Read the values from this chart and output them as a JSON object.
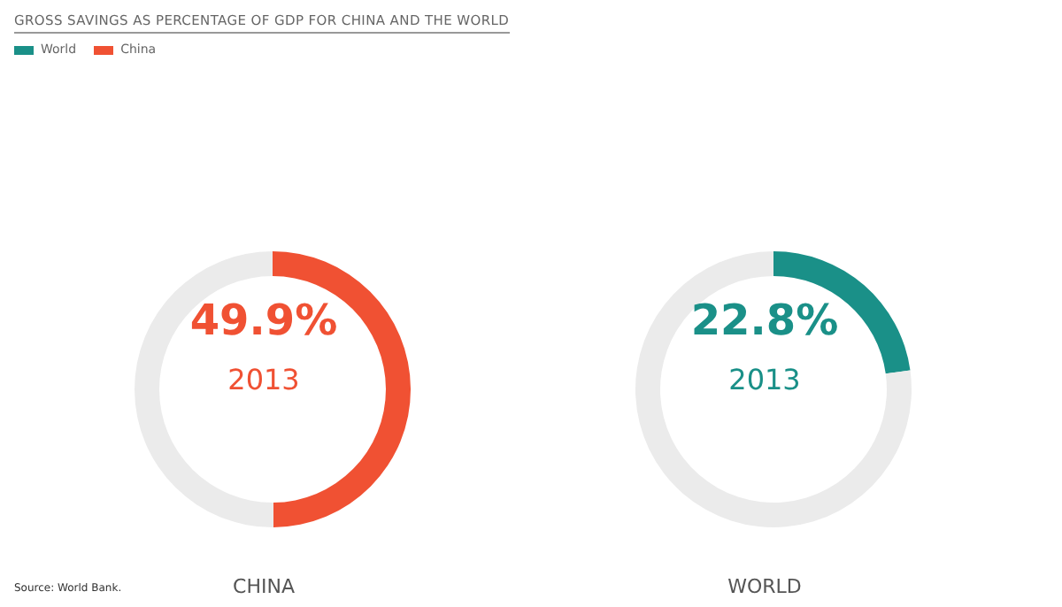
{
  "chart_data": [
    {
      "type": "donut",
      "title": "GROSS SAVINGS AS PERCENTAGE OF GDP FOR CHINA AND THE WORLD",
      "xlabel": "CHINA",
      "categories": [
        "China",
        null
      ],
      "values": [
        49.9,
        50.1
      ],
      "colors": [
        "#f05133",
        "#ebebeb"
      ],
      "value_labels": [
        "49.9%",
        null
      ],
      "annotations": [
        "2013",
        "Source: World Bank."
      ],
      "legend": "top left"
    },
    {
      "type": "donut",
      "xlabel": "WORLD",
      "categories": [
        "World",
        null
      ],
      "values": [
        22.8,
        77.2
      ],
      "colors": [
        "#1a9088",
        "#ebebeb"
      ],
      "value_labels": [
        "22.8%",
        null
      ],
      "annotations": [
        "2013"
      ],
      "legend": "top left"
    }
  ]
}
